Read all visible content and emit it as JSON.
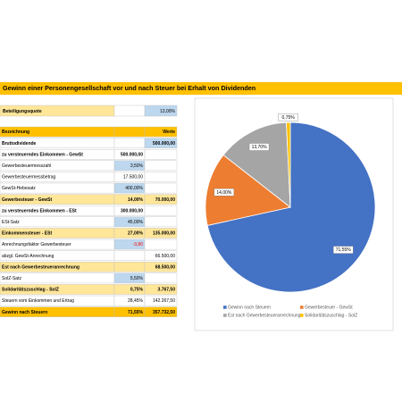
{
  "header": {
    "title": "Gewinn einer Personengesellschaft vor und nach Steuer bei Erhalt von Dividenden"
  },
  "quote": {
    "label": "Beteiligungsquote",
    "value": "13,00%"
  },
  "table": {
    "rows": [
      [
        "Bezeichnung",
        null,
        "Werte"
      ],
      [
        "Bruttodividende",
        null,
        "500.000,00"
      ],
      [
        "zu versteuerndes Einkommen - GewSt",
        "500.000,00",
        null
      ],
      [
        "Gewerbesteuermesszahl",
        "3,50%",
        null
      ],
      [
        "Gewerbesteuermessbetrag",
        "17.500,00",
        null
      ],
      [
        "GewSt-Hebesatz",
        "400,00%",
        null
      ],
      [
        "Gewerbesteuer - GewSt",
        "14,00%",
        "70.000,00"
      ],
      [
        "zu versteuerndes Einkommen - ESt",
        "300.000,00",
        null
      ],
      [
        "ESt-Satz",
        "45,00%",
        null
      ],
      [
        "Einkommensteuer - ESt",
        "27,00%",
        "135.000,00"
      ],
      [
        "Anrechnungsfaktor Gewerbesteuer",
        "-3,80",
        null
      ],
      [
        "abzgl. GewSt-Anrechnung",
        null,
        "66.500,00"
      ],
      [
        "Est nach Gewerbesteueranrechnung",
        null,
        "68.500,00"
      ],
      [
        "SolZ-Satz",
        "5,50%",
        null
      ],
      [
        "Solidaritätszuschlag - SolZ",
        "0,75%",
        "3.767,50"
      ],
      [
        "Steuern vom Einkommen und Ertrag",
        "28,45%",
        "142.267,50"
      ],
      [
        "Gewinn nach Steuern",
        "71,55%",
        "357.732,50"
      ]
    ]
  },
  "chart_data": {
    "type": "pie",
    "categories": [
      "Gewinn nach Steuern",
      "Gewerbesteuer - GewSt",
      "Est nach Gewerbesteueranrechnung",
      "Solidaritätszuschlag - SolZ"
    ],
    "values": [
      71.55,
      14.0,
      13.7,
      0.75
    ],
    "value_labels": [
      "71,55%",
      "14,00%",
      "13,70%",
      "0,75%"
    ],
    "colors": [
      "#4472c4",
      "#ed7d31",
      "#a5a5a5",
      "#ffc000"
    ],
    "legend": "bottom"
  }
}
